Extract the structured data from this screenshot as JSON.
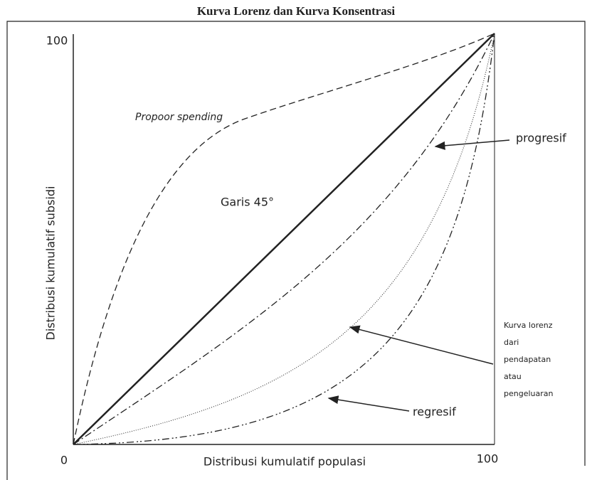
{
  "title": "Kurva Lorenz dan Kurva Konsentrasi",
  "y_axis": {
    "label": "Distribusi kumulatif subsidi",
    "max_label": "100"
  },
  "x_axis": {
    "label": "Distribusi kumulatif populasi",
    "min_label": "0",
    "max_label": "100"
  },
  "annotations": {
    "propoor": "Propoor spending",
    "diagonal": "Garis 45°",
    "progressive": "progresif",
    "regressive": "regresif",
    "lorenz": [
      "Kurva lorenz",
      "dari",
      "pendapatan",
      "atau",
      "pengeluaran"
    ]
  }
}
